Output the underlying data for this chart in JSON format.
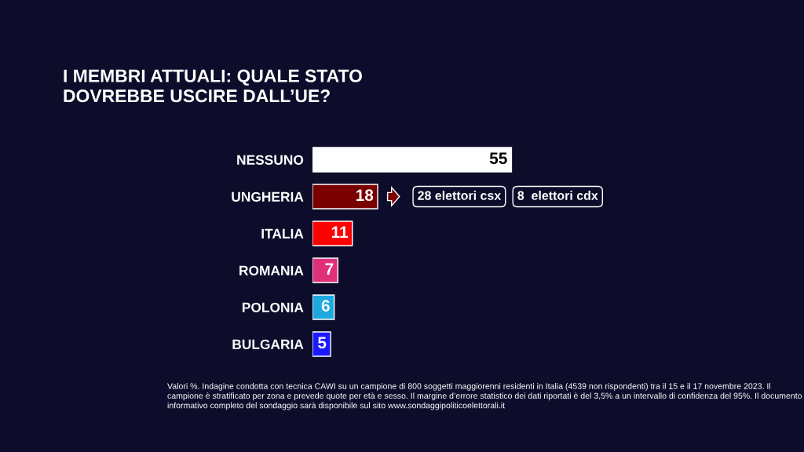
{
  "chart_data": {
    "type": "bar",
    "orientation": "horizontal",
    "title": "I MEMBRI ATTUALI: QUALE STATO\nDOVREBBE USCIRE DALL’UE?",
    "categories": [
      "NESSUNO",
      "UNGHERIA",
      "ITALIA",
      "ROMANIA",
      "POLONIA",
      "BULGARIA"
    ],
    "values": [
      55,
      18,
      11,
      7,
      6,
      5
    ],
    "colors": [
      "#ffffff",
      "#7a0000",
      "#ff0000",
      "#e0307a",
      "#1ea8e0",
      "#1a1aff"
    ],
    "data_labels": true,
    "annotations": [
      "28 elettori csx",
      "8  elettori cdx",
      "Valori %. Indagine condotta con tecnica CAWI su un campione di 800 soggetti maggiorenni residenti in Italia (4539 non rispondenti) tra il 15 e il 17 novembre 2023. Il campione è stratificato per zona e prevede quote per età e sesso. Il margine d’errore statistico dei dati riportati è del 3,5% a un intervallo di confidenza del 95%. Il documento informativo completo del sondaggio sarà disponibile sul sito www.sondaggipoliticoelettorali.it"
    ]
  }
}
